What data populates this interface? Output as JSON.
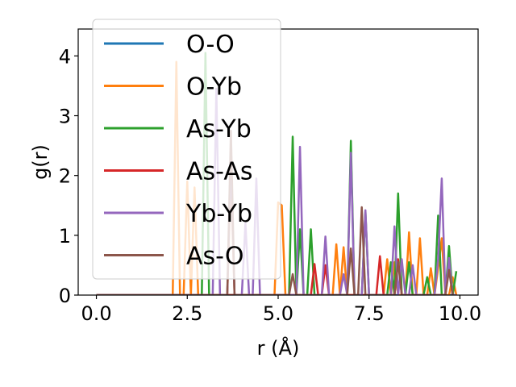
{
  "chart_data": {
    "type": "line",
    "xlabel": "r (Å)",
    "ylabel": "g(r)",
    "xlim": [
      -0.5,
      10.5
    ],
    "ylim": [
      0,
      4.45
    ],
    "xticks": [
      "0.0",
      "2.5",
      "5.0",
      "7.5",
      "10.0"
    ],
    "xtick_values": [
      0,
      2.5,
      5,
      7.5,
      10
    ],
    "yticks": [
      "0",
      "1",
      "2",
      "3",
      "4"
    ],
    "ytick_values": [
      0,
      1,
      2,
      3,
      4
    ],
    "grid": false,
    "legend_position": "top-left",
    "series": [
      {
        "name": "O-O",
        "color": "#1f77b4",
        "x": [
          0,
          9.9
        ],
        "y": [
          0,
          0
        ]
      },
      {
        "name": "O-Yb",
        "color": "#ff7f0e",
        "x": [
          0,
          2.1,
          2.2,
          2.3,
          2.4,
          2.5,
          2.6,
          2.7,
          2.8,
          2.9,
          3.6,
          3.7,
          3.8,
          4.9,
          5.0,
          5.1,
          5.2,
          6.5,
          6.6,
          6.7,
          6.8,
          6.9,
          7.0,
          7.9,
          8.0,
          8.1,
          8.2,
          8.3,
          8.4,
          8.5,
          8.6,
          8.7,
          8.8,
          8.9,
          9.0,
          9.1,
          9.2,
          9.3,
          9.4,
          9.5,
          9.6,
          9.7,
          9.8,
          9.9
        ],
        "y": [
          0,
          0,
          3.9,
          0,
          0,
          1.9,
          0,
          1.8,
          0,
          0,
          0,
          2.0,
          0,
          0,
          1.55,
          1.5,
          0,
          0,
          0.85,
          0,
          0.8,
          0,
          0,
          0,
          0.6,
          0,
          0.55,
          0,
          0,
          0,
          1.05,
          0,
          0,
          0.95,
          0,
          0,
          0.45,
          0,
          0.45,
          0.95,
          0,
          0,
          0.3,
          0
        ]
      },
      {
        "name": "As-Yb",
        "color": "#2ca02c",
        "x": [
          0,
          2.9,
          3.0,
          3.1,
          5.3,
          5.4,
          5.5,
          5.6,
          5.7,
          5.8,
          5.9,
          6.0,
          6.9,
          7.0,
          7.1,
          7.2,
          7.3,
          7.4,
          7.5,
          7.6,
          7.7,
          7.8,
          7.9,
          8.0,
          8.1,
          8.2,
          8.3,
          8.4,
          8.5,
          8.6,
          8.7,
          8.8,
          8.9,
          9.0,
          9.1,
          9.2,
          9.3,
          9.4,
          9.5,
          9.6,
          9.7,
          9.8,
          9.9
        ],
        "y": [
          0,
          0,
          4.05,
          0,
          0,
          2.65,
          0,
          1.1,
          0,
          0,
          1.1,
          0,
          0,
          2.58,
          0,
          0,
          0,
          1.4,
          0,
          0,
          0,
          0,
          0,
          0,
          0.55,
          0,
          1.7,
          0,
          0,
          0.55,
          0,
          0,
          0,
          0,
          0.3,
          0,
          0,
          1.33,
          0,
          0,
          0.82,
          0,
          0.4
        ]
      },
      {
        "name": "As-As",
        "color": "#d62728",
        "x": [
          0,
          5.9,
          6.0,
          6.1,
          6.2,
          6.3,
          6.4,
          7.7,
          7.8,
          7.9,
          8.2,
          8.3,
          8.4,
          9.6,
          9.7,
          9.8
        ],
        "y": [
          0,
          0,
          0.52,
          0,
          0,
          0.5,
          0,
          0,
          0.65,
          0,
          0,
          0.6,
          0,
          0,
          0.48,
          0
        ]
      },
      {
        "name": "Yb-Yb",
        "color": "#9467bd",
        "x": [
          0,
          3.2,
          3.3,
          3.4,
          3.6,
          3.7,
          3.8,
          4.0,
          4.1,
          4.2,
          4.3,
          4.4,
          4.5,
          5.5,
          5.6,
          5.7,
          5.8,
          6.2,
          6.3,
          6.4,
          6.7,
          6.8,
          6.9,
          7.0,
          7.1,
          7.2,
          7.3,
          7.4,
          7.5,
          8.1,
          8.2,
          8.3,
          8.4,
          8.5,
          8.6,
          8.7,
          8.8,
          8.9,
          9.3,
          9.4,
          9.5,
          9.6,
          9.7,
          9.8,
          9.9
        ],
        "y": [
          0,
          0,
          3.45,
          0,
          0,
          2.3,
          0,
          0,
          1.2,
          0,
          0,
          1.95,
          0,
          0,
          2.48,
          0,
          0,
          0,
          0.98,
          0,
          0,
          0.35,
          0,
          2.38,
          0,
          0,
          0,
          1.42,
          0,
          0,
          1.15,
          0,
          0.6,
          0,
          0,
          0.5,
          0,
          0,
          0,
          0.6,
          1.95,
          0,
          0.62,
          0,
          0
        ]
      },
      {
        "name": "As-O",
        "color": "#8c564b",
        "x": [
          0,
          3.6,
          3.7,
          3.8,
          5.3,
          5.4,
          5.5,
          6.9,
          7.0,
          7.1,
          7.2,
          7.3,
          7.4,
          8.2,
          8.3,
          8.4,
          9.6,
          9.7,
          9.8
        ],
        "y": [
          0,
          0,
          2.75,
          0,
          0,
          0.35,
          0,
          0,
          0.78,
          0,
          0,
          1.47,
          0,
          0,
          0.55,
          0,
          0,
          0.42,
          0
        ]
      }
    ]
  }
}
